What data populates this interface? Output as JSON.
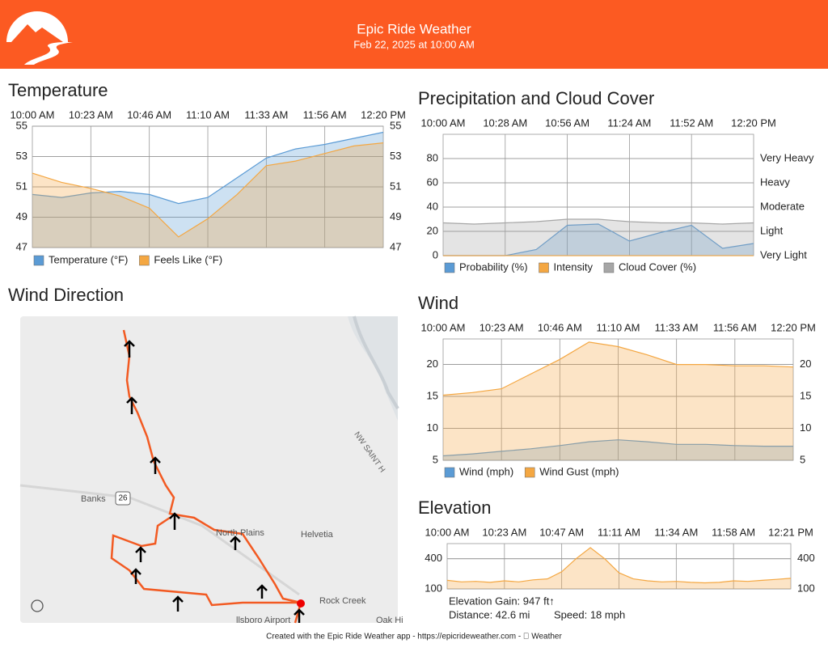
{
  "header": {
    "title": "Epic Ride Weather",
    "subtitle": "Feb 22, 2025 at 10:00 AM"
  },
  "chart_data": [
    {
      "type": "area",
      "title": "Temperature",
      "categories": [
        "10:00 AM",
        null,
        "10:23 AM",
        null,
        "10:46 AM",
        null,
        "11:10 AM",
        null,
        "11:33 AM",
        null,
        "11:56 AM",
        null,
        "12:20 PM"
      ],
      "series": [
        {
          "name": "Temperature (°F)",
          "color": "#5b9bd5",
          "values": [
            50.5,
            50.3,
            50.6,
            50.7,
            50.5,
            49.9,
            50.3,
            51.6,
            52.9,
            53.5,
            53.8,
            54.2,
            54.6
          ]
        },
        {
          "name": "Feels Like (°F)",
          "color": "#f4a742",
          "values": [
            51.9,
            51.3,
            50.9,
            50.4,
            49.6,
            47.7,
            48.9,
            50.5,
            52.4,
            52.7,
            53.2,
            53.7,
            53.9
          ]
        }
      ],
      "ylim": [
        47,
        55
      ],
      "yticks": [
        47,
        49,
        51,
        53,
        55
      ],
      "y2lim": [
        47,
        55
      ],
      "y2ticks": [
        47,
        49,
        51,
        53,
        55
      ],
      "grid": true
    },
    {
      "type": "area",
      "title": "Precipitation and Cloud Cover",
      "categories": [
        "10:00 AM",
        null,
        "10:28 AM",
        null,
        "10:56 AM",
        null,
        "11:24 AM",
        null,
        "11:52 AM",
        null,
        "12:20 PM"
      ],
      "series": [
        {
          "name": "Probability (%)",
          "color": "#5b9bd5",
          "values": [
            0,
            0,
            0,
            5,
            25,
            26,
            12,
            19,
            25,
            6,
            10
          ]
        },
        {
          "name": "Intensity",
          "color": "#f4a742",
          "axis": "y2",
          "values": [
            0,
            0,
            0,
            0,
            0,
            0,
            0,
            0,
            0,
            0,
            0
          ]
        },
        {
          "name": "Cloud Cover (%)",
          "color": "#a6a6a6",
          "values": [
            27,
            26,
            27,
            28,
            30,
            30,
            28,
            27,
            27,
            26,
            27
          ]
        }
      ],
      "ylim": [
        0,
        100
      ],
      "yticks": [
        0,
        20,
        40,
        60,
        80
      ],
      "y2lim": [
        0,
        100
      ],
      "y2ticks": [
        {
          "value": 0,
          "label": "Very Light"
        },
        {
          "value": 20,
          "label": "Light"
        },
        {
          "value": 40,
          "label": "Moderate"
        },
        {
          "value": 60,
          "label": "Heavy"
        },
        {
          "value": 80,
          "label": "Very Heavy"
        }
      ],
      "grid": true
    },
    {
      "type": "area",
      "title": "Wind",
      "categories": [
        "10:00 AM",
        null,
        "10:23 AM",
        null,
        "10:46 AM",
        null,
        "11:10 AM",
        null,
        "11:33 AM",
        null,
        "11:56 AM",
        null,
        "12:20 PM"
      ],
      "series": [
        {
          "name": "Wind (mph)",
          "color": "#5b9bd5",
          "values": [
            5.7,
            6.0,
            6.4,
            6.8,
            7.3,
            7.9,
            8.2,
            7.9,
            7.5,
            7.5,
            7.3,
            7.2,
            7.2
          ]
        },
        {
          "name": "Wind Gust (mph)",
          "color": "#f4a742",
          "values": [
            15.2,
            15.6,
            16.2,
            18.5,
            20.8,
            23.5,
            22.8,
            21.5,
            20.0,
            20.0,
            19.8,
            19.8,
            19.6
          ]
        }
      ],
      "ylim": [
        5,
        24
      ],
      "yticks": [
        5,
        10,
        15,
        20
      ],
      "y2lim": [
        5,
        24
      ],
      "y2ticks": [
        5,
        10,
        15,
        20
      ],
      "grid": true
    },
    {
      "type": "area",
      "title": "Elevation",
      "categories": [
        "10:00 AM",
        null,
        null,
        null,
        "10:23 AM",
        null,
        null,
        null,
        "10:47 AM",
        null,
        null,
        null,
        "11:11 AM",
        null,
        null,
        null,
        "11:34 AM",
        null,
        null,
        null,
        "11:58 AM",
        null,
        null,
        null,
        "12:21 PM"
      ],
      "values": [
        185,
        170,
        175,
        165,
        180,
        170,
        190,
        200,
        270,
        400,
        510,
        400,
        260,
        200,
        180,
        170,
        175,
        165,
        160,
        165,
        180,
        175,
        185,
        195,
        205
      ],
      "color": "#f4a742",
      "ylim": [
        100,
        550
      ],
      "yticks": [
        100,
        400
      ],
      "y2lim": [
        100,
        550
      ],
      "y2ticks": [
        100,
        400
      ],
      "grid": true,
      "annotations": [
        "Elevation Gain: 947 ft↑",
        "Distance: 42.6 mi",
        "Speed: 18 mph"
      ]
    }
  ],
  "map": {
    "title": "Wind Direction",
    "labels": [
      "Banks",
      "26",
      "North Plains",
      "Helvetia",
      "Rock Creek",
      "NW SAINT H",
      "llsboro Airport",
      "Oak Hi"
    ]
  },
  "footer": "Created with the Epic Ride Weather app - https://epicrideweather.com -  Weather"
}
